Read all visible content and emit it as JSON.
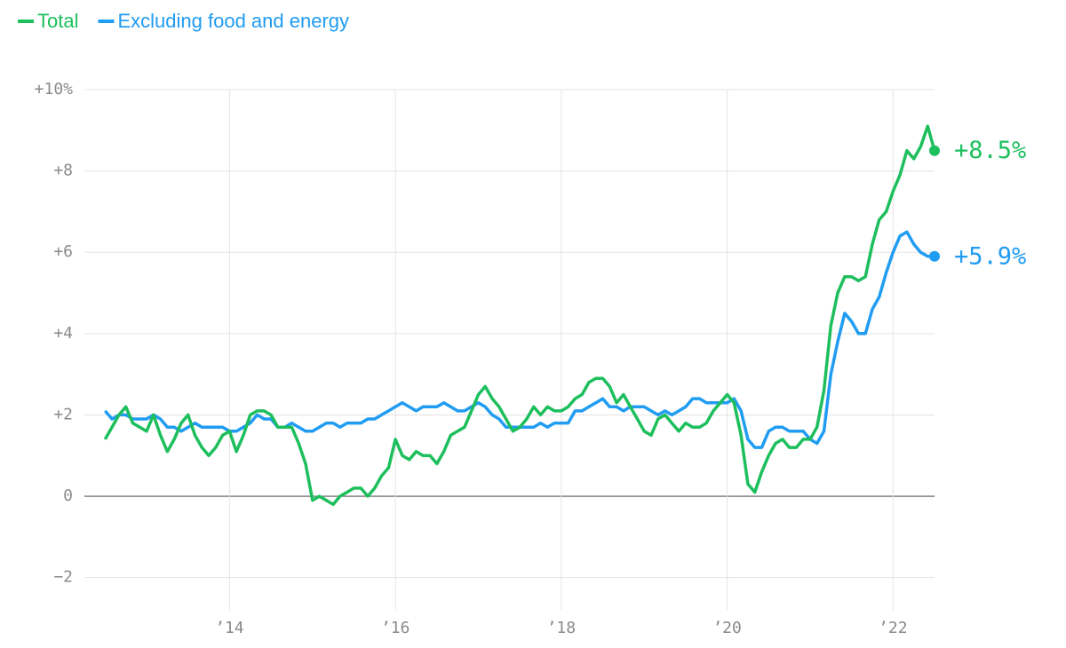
{
  "chart_data": {
    "type": "line",
    "x": [
      2012.5,
      2012.583,
      2012.667,
      2012.75,
      2012.833,
      2012.917,
      2013,
      2013.083,
      2013.167,
      2013.25,
      2013.333,
      2013.417,
      2013.5,
      2013.583,
      2013.667,
      2013.75,
      2013.833,
      2013.917,
      2014,
      2014.083,
      2014.167,
      2014.25,
      2014.333,
      2014.417,
      2014.5,
      2014.583,
      2014.667,
      2014.75,
      2014.833,
      2014.917,
      2015,
      2015.083,
      2015.167,
      2015.25,
      2015.333,
      2015.417,
      2015.5,
      2015.583,
      2015.667,
      2015.75,
      2015.833,
      2015.917,
      2016,
      2016.083,
      2016.167,
      2016.25,
      2016.333,
      2016.417,
      2016.5,
      2016.583,
      2016.667,
      2016.75,
      2016.833,
      2016.917,
      2017,
      2017.083,
      2017.167,
      2017.25,
      2017.333,
      2017.417,
      2017.5,
      2017.583,
      2017.667,
      2017.75,
      2017.833,
      2017.917,
      2018,
      2018.083,
      2018.167,
      2018.25,
      2018.333,
      2018.417,
      2018.5,
      2018.583,
      2018.667,
      2018.75,
      2018.833,
      2018.917,
      2019,
      2019.083,
      2019.167,
      2019.25,
      2019.333,
      2019.417,
      2019.5,
      2019.583,
      2019.667,
      2019.75,
      2019.833,
      2019.917,
      2020,
      2020.083,
      2020.167,
      2020.25,
      2020.333,
      2020.417,
      2020.5,
      2020.583,
      2020.667,
      2020.75,
      2020.833,
      2020.917,
      2021,
      2021.083,
      2021.167,
      2021.25,
      2021.333,
      2021.417,
      2021.5,
      2021.583,
      2021.667,
      2021.75,
      2021.833,
      2021.917,
      2022,
      2022.083,
      2022.167,
      2022.25,
      2022.333,
      2022.417,
      2022.5
    ],
    "series": [
      {
        "name": "Total",
        "color": "#1dbf5d",
        "end_label": "+8.5%",
        "values": [
          1.4,
          1.7,
          2.0,
          2.2,
          1.8,
          1.7,
          1.6,
          2.0,
          1.5,
          1.1,
          1.4,
          1.8,
          2.0,
          1.5,
          1.2,
          1.0,
          1.2,
          1.5,
          1.6,
          1.1,
          1.5,
          2.0,
          2.1,
          2.1,
          2.0,
          1.7,
          1.7,
          1.7,
          1.3,
          0.8,
          -0.1,
          0.0,
          -0.1,
          -0.2,
          0.0,
          0.1,
          0.2,
          0.2,
          0.0,
          0.2,
          0.5,
          0.7,
          1.4,
          1.0,
          0.9,
          1.1,
          1.0,
          1.0,
          0.8,
          1.1,
          1.5,
          1.6,
          1.7,
          2.1,
          2.5,
          2.7,
          2.4,
          2.2,
          1.9,
          1.6,
          1.7,
          1.9,
          2.2,
          2.0,
          2.2,
          2.1,
          2.1,
          2.2,
          2.4,
          2.5,
          2.8,
          2.9,
          2.9,
          2.7,
          2.3,
          2.5,
          2.2,
          1.9,
          1.6,
          1.5,
          1.9,
          2.0,
          1.8,
          1.6,
          1.8,
          1.7,
          1.7,
          1.8,
          2.1,
          2.3,
          2.5,
          2.3,
          1.5,
          0.3,
          0.1,
          0.6,
          1.0,
          1.3,
          1.4,
          1.2,
          1.2,
          1.4,
          1.4,
          1.7,
          2.6,
          4.2,
          5.0,
          5.4,
          5.4,
          5.3,
          5.4,
          6.2,
          6.8,
          7.0,
          7.5,
          7.9,
          8.5,
          8.3,
          8.6,
          9.1,
          8.5
        ]
      },
      {
        "name": "Excluding food and energy",
        "color": "#209cf2",
        "end_label": "+5.9%",
        "values": [
          2.1,
          1.9,
          2.0,
          2.0,
          1.9,
          1.9,
          1.9,
          2.0,
          1.9,
          1.7,
          1.7,
          1.6,
          1.7,
          1.8,
          1.7,
          1.7,
          1.7,
          1.7,
          1.6,
          1.6,
          1.7,
          1.8,
          2.0,
          1.9,
          1.9,
          1.7,
          1.7,
          1.8,
          1.7,
          1.6,
          1.6,
          1.7,
          1.8,
          1.8,
          1.7,
          1.8,
          1.8,
          1.8,
          1.9,
          1.9,
          2.0,
          2.1,
          2.2,
          2.3,
          2.2,
          2.1,
          2.2,
          2.2,
          2.2,
          2.3,
          2.2,
          2.1,
          2.1,
          2.2,
          2.3,
          2.2,
          2.0,
          1.9,
          1.7,
          1.7,
          1.7,
          1.7,
          1.7,
          1.8,
          1.7,
          1.8,
          1.8,
          1.8,
          2.1,
          2.1,
          2.2,
          2.3,
          2.4,
          2.2,
          2.2,
          2.1,
          2.2,
          2.2,
          2.2,
          2.1,
          2.0,
          2.1,
          2.0,
          2.1,
          2.2,
          2.4,
          2.4,
          2.3,
          2.3,
          2.3,
          2.3,
          2.4,
          2.1,
          1.4,
          1.2,
          1.2,
          1.6,
          1.7,
          1.7,
          1.6,
          1.6,
          1.6,
          1.4,
          1.3,
          1.6,
          3.0,
          3.8,
          4.5,
          4.3,
          4.0,
          4.0,
          4.6,
          4.9,
          5.5,
          6.0,
          6.4,
          6.5,
          6.2,
          6.0,
          5.9,
          5.9
        ]
      }
    ],
    "xlim": [
      2012.25,
      2022.5
    ],
    "xticks": [
      {
        "value": 2014,
        "label": "’14"
      },
      {
        "value": 2016,
        "label": "’16"
      },
      {
        "value": 2018,
        "label": "’18"
      },
      {
        "value": 2020,
        "label": "’20"
      },
      {
        "value": 2022,
        "label": "’22"
      }
    ],
    "ylim": [
      -2.8,
      10
    ],
    "yticks": [
      {
        "value": -2,
        "label": "−2"
      },
      0,
      {
        "value": 2,
        "label": "+2"
      },
      {
        "value": 4,
        "label": "+4"
      },
      {
        "value": 6,
        "label": "+6"
      },
      {
        "value": 8,
        "label": "+8"
      },
      {
        "value": 10,
        "label": "+10%"
      }
    ],
    "grid": true,
    "legend": "top-left"
  }
}
